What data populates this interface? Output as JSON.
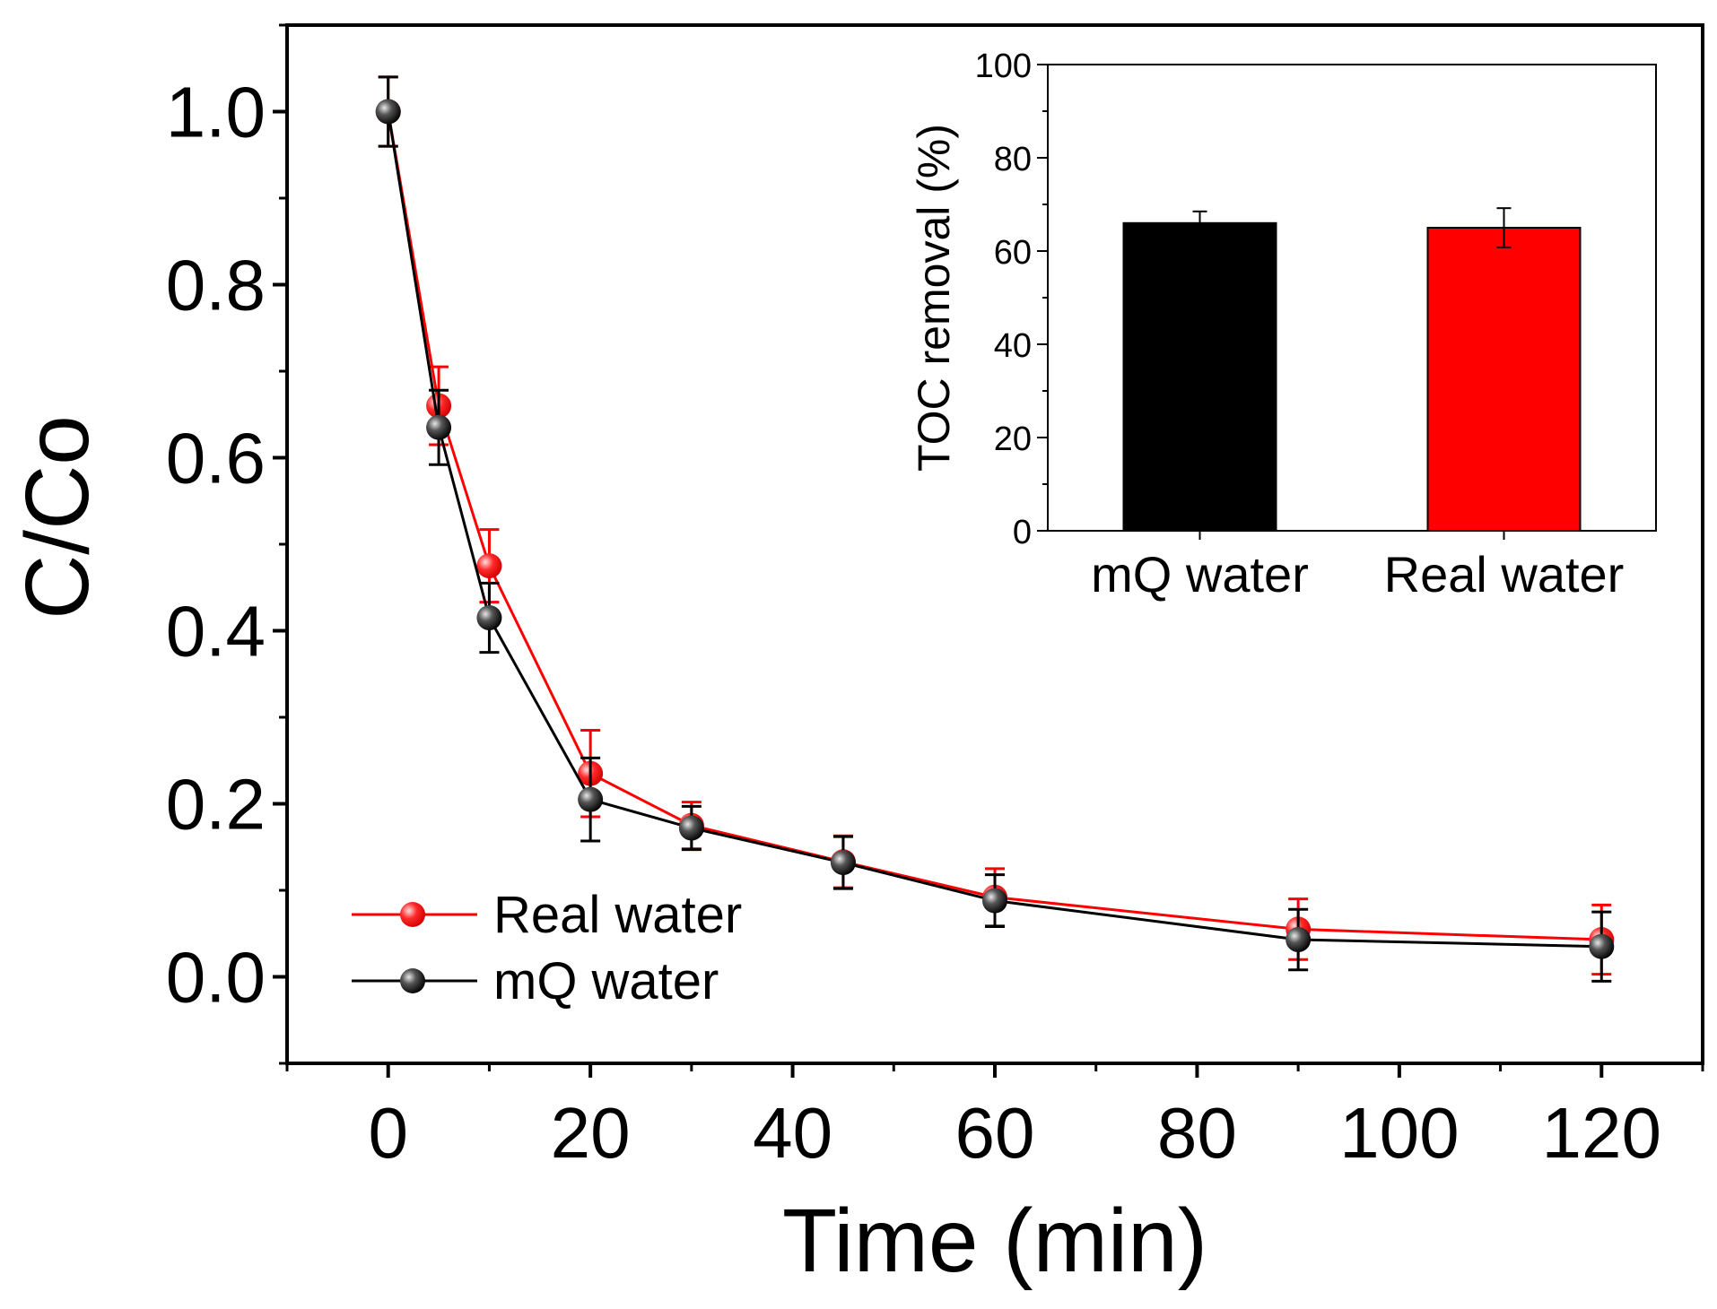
{
  "chart_data": [
    {
      "id": "main",
      "type": "line",
      "title": "",
      "xlabel": "Time (min)",
      "ylabel": "C/Co",
      "xlim": [
        -10,
        130
      ],
      "ylim": [
        -0.1,
        1.1
      ],
      "xticks": [
        0,
        20,
        40,
        60,
        80,
        100,
        120
      ],
      "xtick_labels": [
        "0",
        "20",
        "40",
        "60",
        "80",
        "100",
        "120"
      ],
      "yticks": [
        0.0,
        0.2,
        0.4,
        0.6,
        0.8,
        1.0
      ],
      "ytick_labels": [
        "0.0",
        "0.2",
        "0.4",
        "0.6",
        "0.8",
        "1.0"
      ],
      "grid": false,
      "legend_position": "bottom-left",
      "series": [
        {
          "name": "Real water",
          "color": "#ff0000",
          "x": [
            0,
            5,
            10,
            20,
            30,
            45,
            60,
            90,
            120
          ],
          "y": [
            1.0,
            0.66,
            0.475,
            0.235,
            0.175,
            0.133,
            0.092,
            0.055,
            0.043
          ],
          "err": [
            0.04,
            0.045,
            0.042,
            0.05,
            0.027,
            0.03,
            0.033,
            0.035,
            0.04
          ]
        },
        {
          "name": "mQ water",
          "color": "#000000",
          "x": [
            0,
            5,
            10,
            20,
            30,
            45,
            60,
            90,
            120
          ],
          "y": [
            1.0,
            0.635,
            0.415,
            0.205,
            0.172,
            0.132,
            0.088,
            0.043,
            0.035
          ],
          "err": [
            0.04,
            0.043,
            0.04,
            0.048,
            0.025,
            0.03,
            0.03,
            0.035,
            0.04
          ]
        }
      ]
    },
    {
      "id": "inset",
      "type": "bar",
      "title": "",
      "xlabel": "",
      "ylabel": "TOC removal (%)",
      "ylim": [
        0,
        100
      ],
      "yticks": [
        0,
        20,
        40,
        60,
        80,
        100
      ],
      "ytick_labels": [
        "0",
        "20",
        "40",
        "60",
        "80",
        "100"
      ],
      "categories": [
        "mQ water",
        "Real water"
      ],
      "values": [
        66,
        65
      ],
      "errors": [
        2.5,
        4.2
      ],
      "colors": [
        "#000000",
        "#ff0000"
      ],
      "legend_position": "none"
    }
  ]
}
